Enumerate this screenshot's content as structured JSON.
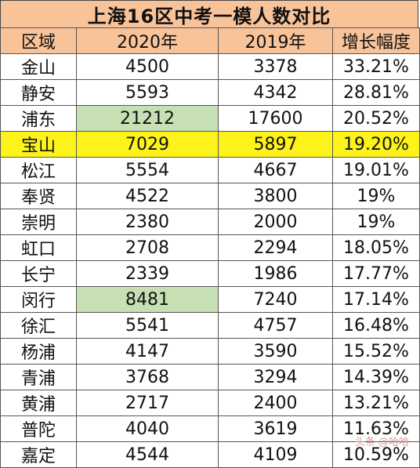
{
  "title": "上海16区中考一模人数对比",
  "headers": [
    "区域",
    "2020年",
    "2019年",
    "增长幅度"
  ],
  "rows": [
    {
      "district": "金山",
      "y2020": "4500",
      "y2019": "3378",
      "growth": "33.21%"
    },
    {
      "district": "静安",
      "y2020": "5593",
      "y2019": "4342",
      "growth": "28.81%"
    },
    {
      "district": "浦东",
      "y2020": "21212",
      "y2019": "17600",
      "growth": "20.52%"
    },
    {
      "district": "宝山",
      "y2020": "7029",
      "y2019": "5897",
      "growth": "19.20%"
    },
    {
      "district": "松江",
      "y2020": "5554",
      "y2019": "4667",
      "growth": "19.01%"
    },
    {
      "district": "奉贤",
      "y2020": "4522",
      "y2019": "3800",
      "growth": "19%"
    },
    {
      "district": "崇明",
      "y2020": "2380",
      "y2019": "2000",
      "growth": "19%"
    },
    {
      "district": "虹口",
      "y2020": "2708",
      "y2019": "2294",
      "growth": "18.05%"
    },
    {
      "district": "长宁",
      "y2020": "2339",
      "y2019": "1986",
      "growth": "17.77%"
    },
    {
      "district": "闵行",
      "y2020": "8481",
      "y2019": "7240",
      "growth": "17.14%"
    },
    {
      "district": "徐汇",
      "y2020": "5541",
      "y2019": "4757",
      "growth": "16.48%"
    },
    {
      "district": "杨浦",
      "y2020": "4147",
      "y2019": "3590",
      "growth": "15.52%"
    },
    {
      "district": "青浦",
      "y2020": "3768",
      "y2019": "3294",
      "growth": "14.39%"
    },
    {
      "district": "黄浦",
      "y2020": "2717",
      "y2019": "2400",
      "growth": "13.21%"
    },
    {
      "district": "普陀",
      "y2020": "4040",
      "y2019": "3619",
      "growth": "11.63%"
    },
    {
      "district": "嘉定",
      "y2020": "4544",
      "y2019": "4109",
      "growth": "10.59%"
    }
  ],
  "watermark": "头条 @哈哈"
}
